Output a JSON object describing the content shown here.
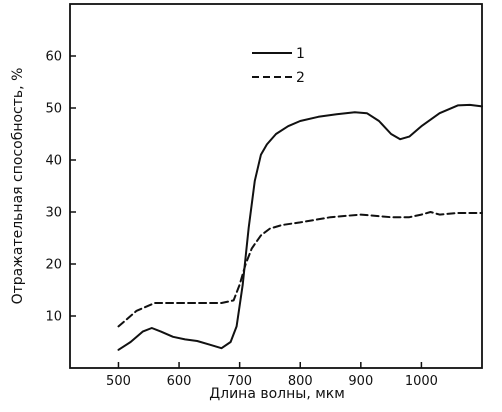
{
  "chart_data": {
    "type": "line",
    "xlabel": "Длина волны, мкм",
    "ylabel": "Отражательная способность, %",
    "xlim": [
      420,
      1100
    ],
    "ylim": [
      0,
      70
    ],
    "xticks": [
      500,
      600,
      700,
      800,
      900,
      1000
    ],
    "yticks": [
      10,
      20,
      30,
      40,
      50,
      60
    ],
    "grid": false,
    "legend_position": "top-center",
    "series": [
      {
        "name": "1",
        "style": "solid",
        "x": [
          500,
          520,
          540,
          555,
          570,
          590,
          610,
          630,
          650,
          670,
          685,
          695,
          705,
          715,
          725,
          735,
          745,
          760,
          780,
          800,
          830,
          860,
          890,
          910,
          930,
          950,
          965,
          980,
          1000,
          1030,
          1060,
          1080,
          1100
        ],
        "y": [
          3.5,
          5,
          7,
          7.7,
          7,
          6,
          5.5,
          5.2,
          4.5,
          3.8,
          5,
          8,
          16,
          27,
          36,
          41,
          43,
          45,
          46.5,
          47.5,
          48.3,
          48.8,
          49.2,
          49,
          47.5,
          45,
          44,
          44.5,
          46.5,
          49,
          50.5,
          50.6,
          50.3
        ]
      },
      {
        "name": "2",
        "style": "dashed",
        "x": [
          500,
          530,
          560,
          600,
          640,
          670,
          690,
          700,
          710,
          720,
          735,
          750,
          770,
          800,
          850,
          900,
          950,
          980,
          1000,
          1015,
          1030,
          1060,
          1100
        ],
        "y": [
          8,
          11,
          12.5,
          12.5,
          12.5,
          12.5,
          13,
          16,
          20,
          23,
          25.5,
          26.8,
          27.5,
          28,
          29,
          29.5,
          29,
          29,
          29.5,
          30,
          29.5,
          29.8,
          29.8
        ]
      }
    ]
  }
}
